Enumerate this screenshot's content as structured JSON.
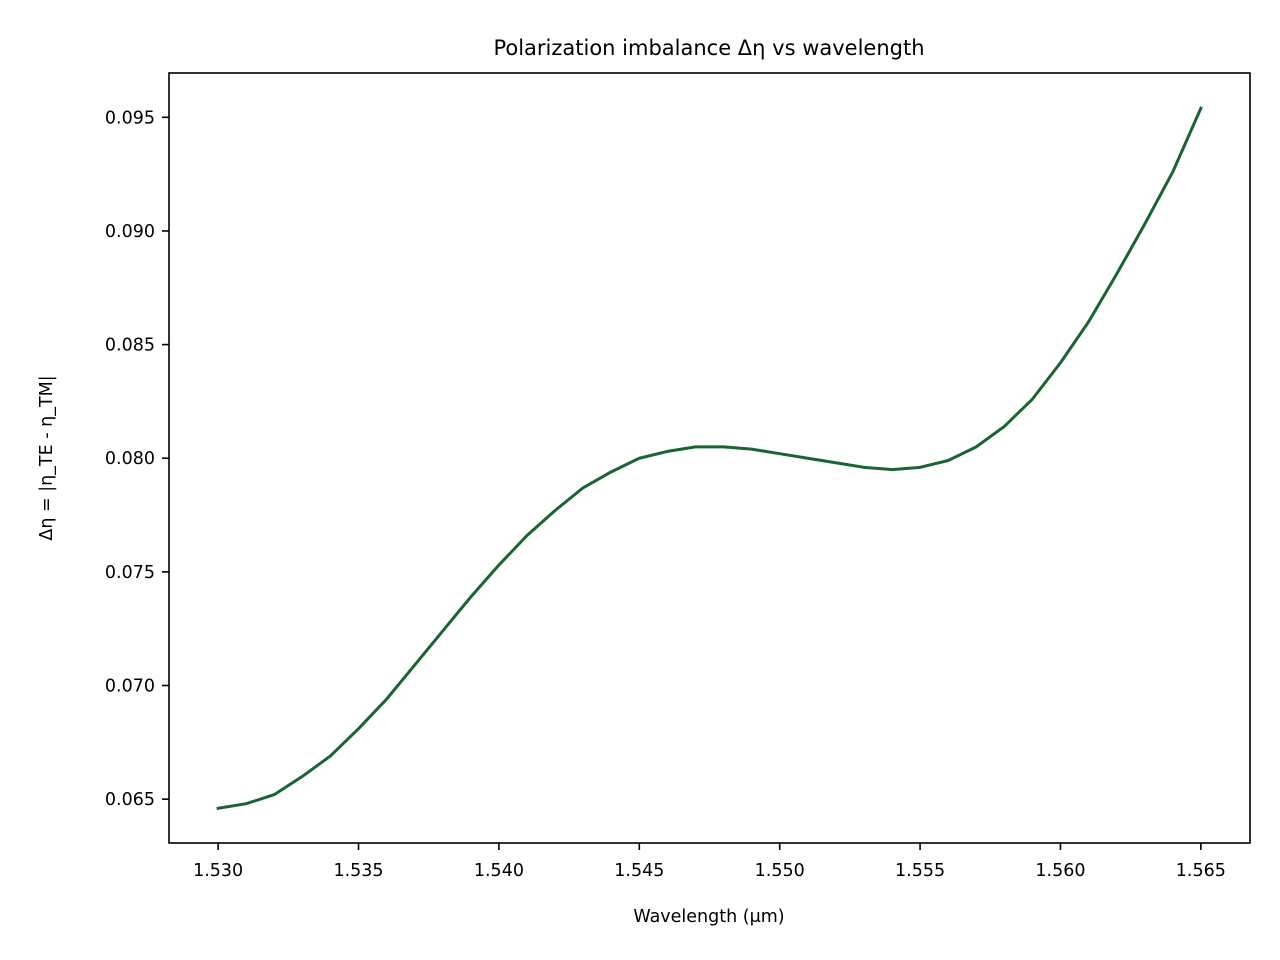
{
  "chart_data": {
    "type": "line",
    "title": "Polarization imbalance Δη vs wavelength",
    "xlabel": "Wavelength (μm)",
    "ylabel": "Δη = |η_TE - η_TM|",
    "xlim": [
      1.52825,
      1.56675
    ],
    "ylim": [
      0.06307,
      0.09695
    ],
    "xticks": [
      "1.530",
      "1.535",
      "1.540",
      "1.545",
      "1.550",
      "1.555",
      "1.560",
      "1.565"
    ],
    "yticks": [
      "0.065",
      "0.070",
      "0.075",
      "0.080",
      "0.085",
      "0.090",
      "0.095"
    ],
    "grid": false,
    "legend": "none",
    "line_color": "#1a6334",
    "series": [
      {
        "x": [
          1.53,
          1.531,
          1.532,
          1.533,
          1.534,
          1.535,
          1.536,
          1.537,
          1.538,
          1.539,
          1.54,
          1.541,
          1.542,
          1.543,
          1.544,
          1.545,
          1.546,
          1.547,
          1.548,
          1.549,
          1.55,
          1.551,
          1.552,
          1.553,
          1.554,
          1.555,
          1.556,
          1.557,
          1.558,
          1.559,
          1.56,
          1.561,
          1.562,
          1.563,
          1.564,
          1.565
        ],
        "y": [
          0.0646,
          0.0648,
          0.0652,
          0.066,
          0.0669,
          0.0681,
          0.0694,
          0.0709,
          0.0724,
          0.0739,
          0.0753,
          0.0766,
          0.0777,
          0.0787,
          0.0794,
          0.08,
          0.0803,
          0.0805,
          0.0805,
          0.0804,
          0.0802,
          0.08,
          0.0798,
          0.0796,
          0.0795,
          0.0796,
          0.0799,
          0.0805,
          0.0814,
          0.0826,
          0.0842,
          0.086,
          0.0881,
          0.0903,
          0.0926,
          0.0954
        ]
      }
    ]
  }
}
